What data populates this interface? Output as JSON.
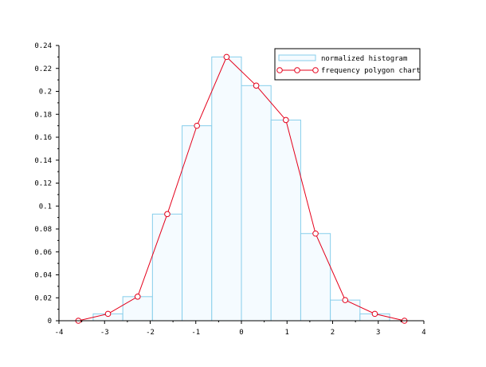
{
  "chart_data": {
    "type": "bar",
    "title": "",
    "xlabel": "",
    "ylabel": "",
    "xlim": [
      -4,
      4
    ],
    "ylim": [
      0,
      0.24
    ],
    "x_ticks": [
      "-4",
      "-3",
      "-2",
      "-1",
      "0",
      "1",
      "2",
      "3",
      "4"
    ],
    "y_ticks": [
      "0",
      "0.02",
      "0.04",
      "0.06",
      "0.08",
      "0.1",
      "0.12",
      "0.14",
      "0.16",
      "0.18",
      "0.2",
      "0.22",
      "0.24"
    ],
    "grid": false,
    "legend_position": "top-right",
    "series": [
      {
        "name": "normalized histogram",
        "kind": "histogram",
        "bin_edges": [
          -3.25,
          -2.6,
          -1.95,
          -1.3,
          -0.65,
          0,
          0.65,
          1.3,
          1.95,
          2.6,
          3.25
        ],
        "values": [
          0.006,
          0.021,
          0.093,
          0.17,
          0.23,
          0.205,
          0.175,
          0.076,
          0.018,
          0.006
        ],
        "color": "#87ceeb",
        "fill": "#f5fbff"
      },
      {
        "name": "frequency polygon chart",
        "kind": "line",
        "x": [
          -3.575,
          -2.925,
          -2.275,
          -1.625,
          -0.975,
          -0.325,
          0.325,
          0.975,
          1.625,
          2.275,
          2.925,
          3.575
        ],
        "values": [
          0,
          0.006,
          0.021,
          0.093,
          0.17,
          0.23,
          0.205,
          0.175,
          0.076,
          0.018,
          0.006,
          0
        ],
        "color": "#e4001b"
      }
    ]
  }
}
